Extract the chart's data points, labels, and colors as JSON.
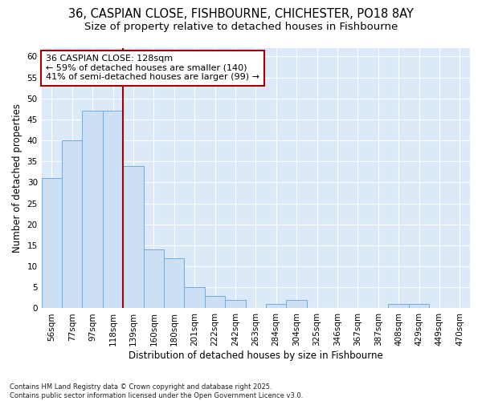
{
  "title_line1": "36, CASPIAN CLOSE, FISHBOURNE, CHICHESTER, PO18 8AY",
  "title_line2": "Size of property relative to detached houses in Fishbourne",
  "xlabel": "Distribution of detached houses by size in Fishbourne",
  "ylabel": "Number of detached properties",
  "footnote": "Contains HM Land Registry data © Crown copyright and database right 2025.\nContains public sector information licensed under the Open Government Licence v3.0.",
  "categories": [
    "56sqm",
    "77sqm",
    "97sqm",
    "118sqm",
    "139sqm",
    "160sqm",
    "180sqm",
    "201sqm",
    "222sqm",
    "242sqm",
    "263sqm",
    "284sqm",
    "304sqm",
    "325sqm",
    "346sqm",
    "367sqm",
    "387sqm",
    "408sqm",
    "429sqm",
    "449sqm",
    "470sqm"
  ],
  "values": [
    31,
    40,
    47,
    47,
    34,
    14,
    12,
    5,
    3,
    2,
    0,
    1,
    2,
    0,
    0,
    0,
    0,
    1,
    1,
    0,
    0
  ],
  "bar_color": "#ccdff5",
  "bar_edge_color": "#6aaee0",
  "bar_width": 1.0,
  "vline_x": 3.5,
  "vline_color": "#a00000",
  "annotation_text": "36 CASPIAN CLOSE: 128sqm\n← 59% of detached houses are smaller (140)\n41% of semi-detached houses are larger (99) →",
  "annotation_box_facecolor": "white",
  "annotation_box_edgecolor": "#a00000",
  "ylim": [
    0,
    62
  ],
  "yticks": [
    0,
    5,
    10,
    15,
    20,
    25,
    30,
    35,
    40,
    45,
    50,
    55,
    60
  ],
  "bg_color": "#dce9f8",
  "grid_color": "white",
  "title_fontsize": 10.5,
  "subtitle_fontsize": 9.5,
  "axis_label_fontsize": 8.5,
  "tick_fontsize": 7.5,
  "annotation_fontsize": 8,
  "footnote_fontsize": 6
}
